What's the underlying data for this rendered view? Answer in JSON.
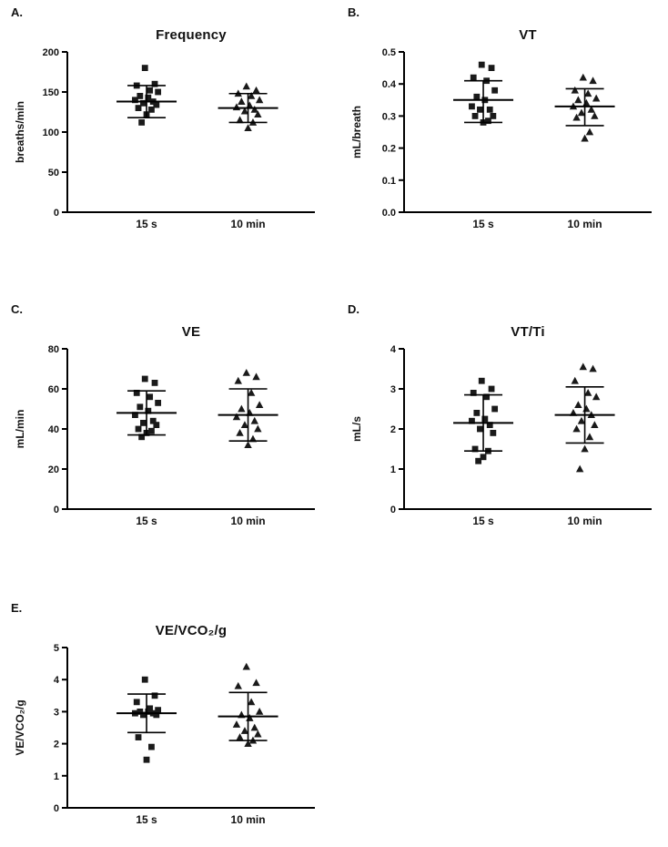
{
  "figure": {
    "panel_labels": [
      "A.",
      "B.",
      "C.",
      "D.",
      "E."
    ],
    "group_labels": [
      "15 s",
      "10 min"
    ],
    "marker_color": "#1a1a1a",
    "axis_color": "#000000"
  },
  "chart_data": [
    {
      "type": "scatter",
      "panel": "A.",
      "title": "Frequency",
      "ylabel": "breaths/min",
      "ylim": [
        0,
        200
      ],
      "yticks": [
        0,
        50,
        100,
        150,
        200
      ],
      "ytick_labels": [
        "0",
        "50",
        "100",
        "150",
        "200"
      ],
      "categories": [
        "15 s",
        "10 min"
      ],
      "series": [
        {
          "name": "15 s",
          "marker": "square",
          "mean": 138,
          "sd_low": 118,
          "sd_high": 158,
          "values": [
            180,
            160,
            158,
            152,
            150,
            145,
            143,
            140,
            138,
            136,
            134,
            130,
            128,
            122,
            112
          ]
        },
        {
          "name": "10 min",
          "marker": "triangle",
          "mean": 130,
          "sd_low": 112,
          "sd_high": 148,
          "values": [
            157,
            152,
            148,
            145,
            140,
            138,
            133,
            131,
            128,
            126,
            122,
            115,
            112,
            105
          ]
        }
      ]
    },
    {
      "type": "scatter",
      "panel": "B.",
      "title": "VT",
      "ylabel": "mL/breath",
      "ylim": [
        0,
        0.5
      ],
      "yticks": [
        0,
        0.1,
        0.2,
        0.3,
        0.4,
        0.5
      ],
      "ytick_labels": [
        "0.0",
        "0.1",
        "0.2",
        "0.3",
        "0.4",
        "0.5"
      ],
      "categories": [
        "15 s",
        "10 min"
      ],
      "series": [
        {
          "name": "15 s",
          "marker": "square",
          "mean": 0.35,
          "sd_low": 0.28,
          "sd_high": 0.41,
          "values": [
            0.46,
            0.45,
            0.42,
            0.41,
            0.38,
            0.36,
            0.35,
            0.33,
            0.32,
            0.32,
            0.3,
            0.3,
            0.285,
            0.28
          ]
        },
        {
          "name": "10 min",
          "marker": "triangle",
          "mean": 0.33,
          "sd_low": 0.27,
          "sd_high": 0.385,
          "values": [
            0.42,
            0.41,
            0.38,
            0.37,
            0.355,
            0.35,
            0.34,
            0.33,
            0.32,
            0.31,
            0.3,
            0.295,
            0.25,
            0.23
          ]
        }
      ]
    },
    {
      "type": "scatter",
      "panel": "C.",
      "title": "VE",
      "ylabel": "mL/min",
      "ylim": [
        0,
        80
      ],
      "yticks": [
        0,
        20,
        40,
        60,
        80
      ],
      "ytick_labels": [
        "0",
        "20",
        "40",
        "60",
        "80"
      ],
      "categories": [
        "15 s",
        "10 min"
      ],
      "series": [
        {
          "name": "15 s",
          "marker": "square",
          "mean": 48,
          "sd_low": 37,
          "sd_high": 59,
          "values": [
            65,
            63,
            58,
            56,
            53,
            51,
            49,
            47,
            44,
            43,
            42,
            40,
            39,
            38,
            36
          ]
        },
        {
          "name": "10 min",
          "marker": "triangle",
          "mean": 47,
          "sd_low": 34,
          "sd_high": 60,
          "values": [
            68,
            66,
            64,
            58,
            52,
            50,
            48,
            46,
            44,
            42,
            40,
            38,
            35,
            32
          ]
        }
      ]
    },
    {
      "type": "scatter",
      "panel": "D.",
      "title": "VT/Ti",
      "ylabel": "mL/s",
      "ylim": [
        0,
        4
      ],
      "yticks": [
        0,
        1,
        2,
        3,
        4
      ],
      "ytick_labels": [
        "0",
        "1",
        "2",
        "3",
        "4"
      ],
      "categories": [
        "15 s",
        "10 min"
      ],
      "series": [
        {
          "name": "15 s",
          "marker": "square",
          "mean": 2.15,
          "sd_low": 1.45,
          "sd_high": 2.85,
          "values": [
            3.2,
            3.0,
            2.9,
            2.8,
            2.5,
            2.4,
            2.25,
            2.2,
            2.1,
            2.0,
            1.9,
            1.5,
            1.45,
            1.3,
            1.2
          ]
        },
        {
          "name": "10 min",
          "marker": "triangle",
          "mean": 2.35,
          "sd_low": 1.65,
          "sd_high": 3.05,
          "values": [
            3.55,
            3.5,
            3.2,
            2.9,
            2.8,
            2.6,
            2.5,
            2.4,
            2.35,
            2.2,
            2.1,
            2.0,
            1.8,
            1.5,
            1.0
          ]
        }
      ]
    },
    {
      "type": "scatter",
      "panel": "E.",
      "title": "VE/VCO₂/g",
      "ylabel": "VE/VCO₂/g",
      "ylim": [
        0,
        5
      ],
      "yticks": [
        0,
        1,
        2,
        3,
        4,
        5
      ],
      "ytick_labels": [
        "0",
        "1",
        "2",
        "3",
        "4",
        "5"
      ],
      "categories": [
        "15 s",
        "10 min"
      ],
      "series": [
        {
          "name": "15 s",
          "marker": "square",
          "mean": 2.95,
          "sd_low": 2.35,
          "sd_high": 3.55,
          "values": [
            4.0,
            3.5,
            3.3,
            3.1,
            3.05,
            3.0,
            3.0,
            2.95,
            2.95,
            2.9,
            2.9,
            2.2,
            1.9,
            1.5
          ]
        },
        {
          "name": "10 min",
          "marker": "triangle",
          "mean": 2.85,
          "sd_low": 2.1,
          "sd_high": 3.6,
          "values": [
            4.4,
            3.9,
            3.8,
            3.3,
            3.0,
            2.9,
            2.8,
            2.6,
            2.5,
            2.4,
            2.3,
            2.2,
            2.1,
            2.0
          ]
        }
      ]
    }
  ]
}
